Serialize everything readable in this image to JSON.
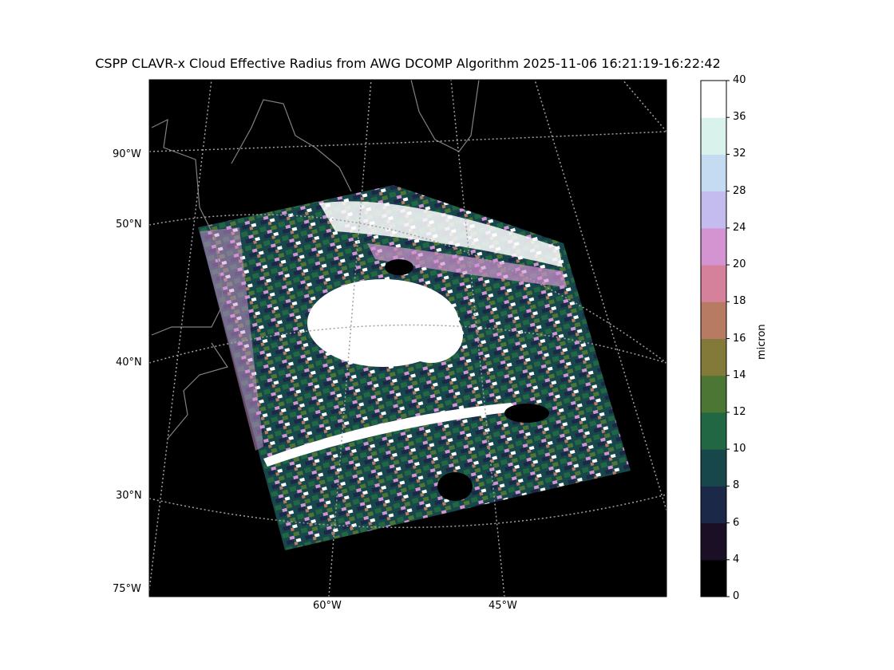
{
  "title": "CSPP CLAVR-x Cloud Effective Radius from AWG DCOMP Algorithm 2025-11-06 16:21:19-16:22:42",
  "map": {
    "background": "#000000",
    "coastline_color": "#808080",
    "graticule_color": "#a0a0a0",
    "left_labels": [
      "90°W",
      "50°N",
      "40°N",
      "30°N",
      "75°W"
    ],
    "bottom_labels": [
      "60°W",
      "45°W"
    ]
  },
  "colorbar": {
    "label": "micron",
    "ticks": [
      "0",
      "4",
      "6",
      "8",
      "10",
      "12",
      "14",
      "16",
      "18",
      "20",
      "24",
      "28",
      "32",
      "36",
      "40"
    ],
    "colors": [
      "#000000",
      "#1a0f24",
      "#1b2848",
      "#17474a",
      "#216744",
      "#4b7634",
      "#837a3a",
      "#b77a62",
      "#d5819b",
      "#d494d2",
      "#c4bbee",
      "#c4dbf2",
      "#d9f2ec",
      "#ffffff"
    ]
  }
}
